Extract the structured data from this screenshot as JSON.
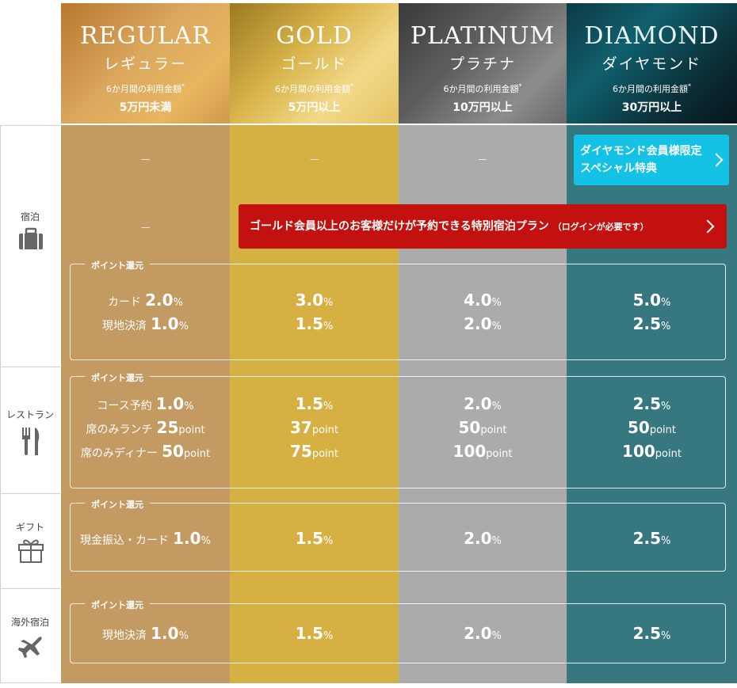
{
  "tiers": [
    {
      "en": "REGULAR",
      "jp": "レギュラー",
      "caption": "6か月間の利用金額",
      "mark": "*",
      "amount": "5万円未満"
    },
    {
      "en": "GOLD",
      "jp": "ゴールド",
      "caption": "6か月間の利用金額",
      "mark": "*",
      "amount": "5万円以上"
    },
    {
      "en": "PLATINUM",
      "jp": "プラチナ",
      "caption": "6か月間の利用金額",
      "mark": "*",
      "amount": "10万円以上"
    },
    {
      "en": "DIAMOND",
      "jp": "ダイヤモンド",
      "caption": "6か月間の利用金額",
      "mark": "*",
      "amount": "30万円以上"
    }
  ],
  "categories": {
    "hotel": "宿泊",
    "restaurant": "レストラン",
    "gift": "ギフト",
    "overseas": "海外宿泊"
  },
  "dash": "－",
  "diamond_button": {
    "line1": "ダイヤモンド会員様限定",
    "line2": "スペシャル特典"
  },
  "gold_plan_button": {
    "label": "ゴールド会員以上のお客様だけが予約できる特別宿泊プラン",
    "note": "（ログインが必要です）"
  },
  "box_title": "ポイント還元",
  "hotel_points": {
    "card_label": "カード",
    "local_label": "現地決済",
    "unit": "%",
    "card": [
      "2.0",
      "3.0",
      "4.0",
      "5.0"
    ],
    "local": [
      "1.0",
      "1.5",
      "2.0",
      "2.5"
    ]
  },
  "restaurant_points": {
    "course_label": "コース予約",
    "lunch_label": "席のみランチ",
    "dinner_label": "席のみディナー",
    "pct_unit": "%",
    "pt_unit": "point",
    "course": [
      "1.0",
      "1.5",
      "2.0",
      "2.5"
    ],
    "lunch": [
      "25",
      "37",
      "50",
      "50"
    ],
    "dinner": [
      "50",
      "75",
      "100",
      "100"
    ]
  },
  "gift_points": {
    "label": "現金振込・カード",
    "unit": "%",
    "values": [
      "1.0",
      "1.5",
      "2.0",
      "2.5"
    ]
  },
  "overseas_points": {
    "label": "現地決済",
    "unit": "%",
    "values": [
      "1.0",
      "1.5",
      "2.0",
      "2.5"
    ]
  }
}
